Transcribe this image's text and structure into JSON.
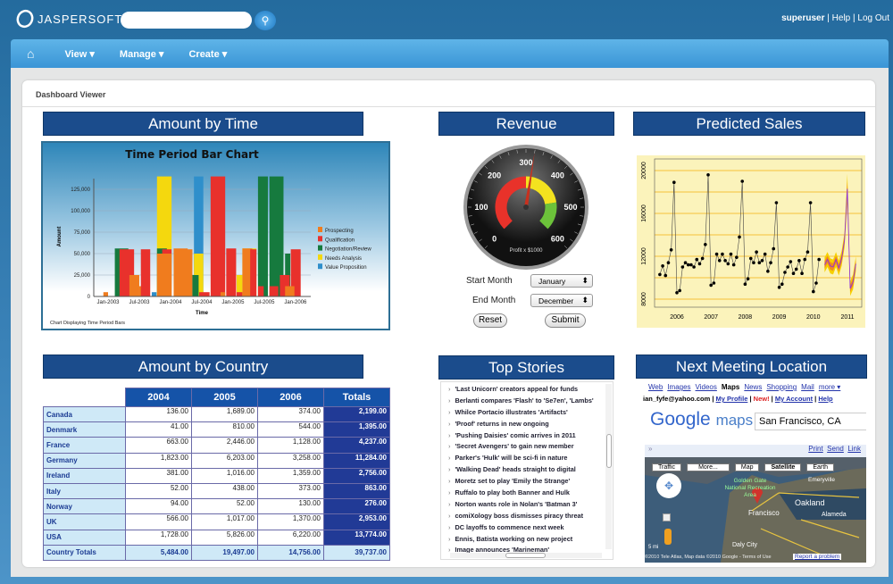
{
  "header": {
    "logo": "JASPERSOFT",
    "search_placeholder": "",
    "user": "superuser",
    "help": "Help",
    "logout": "Log Out",
    "sep": "|"
  },
  "nav": {
    "home": "home",
    "view": "View ▾",
    "manage": "Manage ▾",
    "create": "Create ▾"
  },
  "page": {
    "title": "Dashboard Viewer"
  },
  "panels": {
    "amount_by_time": "Amount by Time",
    "revenue": "Revenue",
    "predicted_sales": "Predicted Sales",
    "amount_by_country": "Amount by Country",
    "top_stories": "Top Stories",
    "next_meeting": "Next Meeting Location"
  },
  "revenue": {
    "gauge_value": 320,
    "gauge_min": 0,
    "gauge_max": 600,
    "ticks": [
      "0",
      "100",
      "200",
      "300",
      "400",
      "500",
      "600"
    ],
    "unit_label": "Profit x $1000",
    "start_label": "Start Month",
    "start_value": "January",
    "end_label": "End Month",
    "end_value": "December",
    "reset": "Reset",
    "submit": "Submit",
    "colors": {
      "red": "#e8322a",
      "yellow": "#f3e21f",
      "green": "#6cc23a"
    }
  },
  "chart_data": [
    {
      "type": "bar",
      "title": "Time Period Bar Chart",
      "xlabel": "Time",
      "ylabel": "Amount",
      "footer": "Chart Displaying Time Period Bars",
      "ylim": [
        0,
        140000
      ],
      "yticks": [
        "0",
        "25,000",
        "50,000",
        "75,000",
        "100,000",
        "125,000"
      ],
      "xticks": [
        "Jan-2003",
        "Jul-2003",
        "Jan-2004",
        "Jul-2004",
        "Jan-2005",
        "Jul-2005",
        "Jan-2006"
      ],
      "legend": [
        {
          "name": "Prospecting",
          "color": "#f07c1e"
        },
        {
          "name": "Qualification",
          "color": "#e8312c"
        },
        {
          "name": "Negotiation/Review",
          "color": "#167a3e"
        },
        {
          "name": "Needs Analysis",
          "color": "#f4d80e"
        },
        {
          "name": "Value Proposition",
          "color": "#2f8fcb"
        }
      ],
      "bars": [
        {
          "s": 0,
          "m0": -0.9,
          "m1": 0,
          "v": 5000
        },
        {
          "s": 2,
          "m0": 1.3,
          "m1": 3.9,
          "v": 56000
        },
        {
          "s": 1,
          "m0": 2.2,
          "m1": 5,
          "v": 55000
        },
        {
          "s": 0,
          "m0": 4.1,
          "m1": 6,
          "v": 25000
        },
        {
          "s": 0,
          "m0": 6,
          "m1": 7,
          "v": 12000
        },
        {
          "s": 1,
          "m0": 6.3,
          "m1": 8.1,
          "v": 55000
        },
        {
          "s": 4,
          "m0": 8.4,
          "m1": 9.3,
          "v": 5000
        },
        {
          "s": 3,
          "m0": 9.4,
          "m1": 12.2,
          "v": 140000
        },
        {
          "s": 2,
          "m0": 9.4,
          "m1": 11.3,
          "v": 56000
        },
        {
          "s": 1,
          "m0": 10.4,
          "m1": 12.2,
          "v": 55000
        },
        {
          "s": 0,
          "m0": 9.4,
          "m1": 12.2,
          "v": 50000
        },
        {
          "s": 0,
          "m0": 12.6,
          "m1": 15.3,
          "v": 56000
        },
        {
          "s": 0,
          "m0": 13.5,
          "m1": 16.2,
          "v": 55000
        },
        {
          "s": 4,
          "m0": 16.5,
          "m1": 18.3,
          "v": 140000
        },
        {
          "s": 3,
          "m0": 16.5,
          "m1": 18.3,
          "v": 50000
        },
        {
          "s": 2,
          "m0": 16.2,
          "m1": 17.4,
          "v": 25000
        },
        {
          "s": 1,
          "m0": 17.5,
          "m1": 19.5,
          "v": 5000
        },
        {
          "s": 1,
          "m0": 19.7,
          "m1": 22.5,
          "v": 140000
        },
        {
          "s": 0,
          "m0": 21.6,
          "m1": 22.5,
          "v": 5000
        },
        {
          "s": 1,
          "m0": 22.7,
          "m1": 24.6,
          "v": 56000
        },
        {
          "s": 3,
          "m0": 24.7,
          "m1": 25.8,
          "v": 25000
        },
        {
          "s": 1,
          "m0": 24.7,
          "m1": 25.8,
          "v": 5000
        },
        {
          "s": 3,
          "m0": 25.8,
          "m1": 28.5,
          "v": 56000
        },
        {
          "s": 0,
          "m0": 25.8,
          "m1": 27.7,
          "v": 56000
        },
        {
          "s": 1,
          "m0": 27.3,
          "m1": 28.5,
          "v": 55000
        },
        {
          "s": 2,
          "m0": 28.8,
          "m1": 30.7,
          "v": 140000
        },
        {
          "s": 1,
          "m0": 28.8,
          "m1": 29.9,
          "v": 12000
        },
        {
          "s": 2,
          "m0": 31,
          "m1": 33.7,
          "v": 140000
        },
        {
          "s": 1,
          "m0": 31,
          "m1": 32.7,
          "v": 12000
        },
        {
          "s": 2,
          "m0": 34,
          "m1": 35,
          "v": 50000
        },
        {
          "s": 1,
          "m0": 33,
          "m1": 34.9,
          "v": 25000
        },
        {
          "s": 1,
          "m0": 35.1,
          "m1": 37,
          "v": 55000
        },
        {
          "s": 0,
          "m0": 34,
          "m1": 35.8,
          "v": 12000
        }
      ]
    },
    {
      "type": "line",
      "title": "Predicted Sales",
      "xlim": [
        2005.4,
        2011.3
      ],
      "ylim": [
        8000,
        20000
      ],
      "xticks": [
        "2006",
        "2007",
        "2008",
        "2009",
        "2010",
        "2011"
      ],
      "yticks": [
        "8000",
        "12000",
        "16000",
        "20000"
      ],
      "actual_start": 2005.5,
      "actual": [
        10300,
        11100,
        10200,
        11400,
        12600,
        18900,
        8600,
        8800,
        11000,
        11400,
        11200,
        11200,
        11000,
        11700,
        11300,
        11800,
        13100,
        19600,
        9300,
        9500,
        12200,
        11600,
        12200,
        11600,
        11300,
        12200,
        11200,
        11900,
        13800,
        19000,
        9400,
        9900,
        11800,
        11400,
        12400,
        11400,
        11600,
        12200,
        10600,
        11400,
        12700,
        17000,
        9100,
        9400,
        10500,
        11000,
        11500,
        10400,
        10800,
        11600,
        10400,
        11700,
        12400,
        17000,
        8700,
        9500,
        11700
      ],
      "forecast_start": 2010.33,
      "forecast": [
        11200,
        11700,
        11100,
        11000,
        11700,
        10900,
        11800,
        13500,
        18300,
        9000,
        9600,
        11300
      ]
    }
  ],
  "country_table": {
    "columns": [
      "2004",
      "2005",
      "2006",
      "Totals"
    ],
    "rows": [
      [
        "Canada",
        "136.00",
        "1,689.00",
        "374.00",
        "2,199.00"
      ],
      [
        "Denmark",
        "41.00",
        "810.00",
        "544.00",
        "1,395.00"
      ],
      [
        "France",
        "663.00",
        "2,446.00",
        "1,128.00",
        "4,237.00"
      ],
      [
        "Germany",
        "1,823.00",
        "6,203.00",
        "3,258.00",
        "11,284.00"
      ],
      [
        "Ireland",
        "381.00",
        "1,016.00",
        "1,359.00",
        "2,756.00"
      ],
      [
        "Italy",
        "52.00",
        "438.00",
        "373.00",
        "863.00"
      ],
      [
        "Norway",
        "94.00",
        "52.00",
        "130.00",
        "276.00"
      ],
      [
        "UK",
        "566.00",
        "1,017.00",
        "1,370.00",
        "2,953.00"
      ],
      [
        "USA",
        "1,728.00",
        "5,826.00",
        "6,220.00",
        "13,774.00"
      ]
    ],
    "totals": [
      "Country Totals",
      "5,484.00",
      "19,497.00",
      "14,756.00",
      "39,737.00"
    ]
  },
  "stories": [
    "'Last Unicorn' creators appeal for funds",
    "Berlanti compares 'Flash' to 'Se7en', 'Lambs'",
    "Whilce Portacio illustrates 'Artifacts'",
    "'Proof' returns in new ongoing",
    "'Pushing Daisies' comic arrives in 2011",
    "'Secret Avengers' to gain new member",
    "Parker's 'Hulk' will be sci-fi in nature",
    "'Walking Dead' heads straight to digital",
    "Moretz set to play 'Emily the Strange'",
    "Ruffalo to play both Banner and Hulk",
    "Norton wants role in Nolan's 'Batman 3'",
    "comiXology boss dismisses piracy threat",
    "DC layoffs to commence next week",
    "Ennis, Batista working on new project",
    "Image announces 'Marineman'"
  ],
  "map": {
    "links": [
      "Web",
      "Images",
      "Videos",
      "Maps",
      "News",
      "Shopping",
      "Mail",
      "more ▾"
    ],
    "account": "ian_fyfe@yahoo.com",
    "my_profile": "My Profile",
    "new": "New!",
    "my_account": "My Account",
    "help": "Help",
    "logo_google": "Google",
    "logo_maps": "maps",
    "query": "San Francisco, CA",
    "print": "Print",
    "send": "Send",
    "link": "Link",
    "buttons": [
      "Traffic",
      "More...",
      "Map",
      "Satellite",
      "Earth"
    ],
    "labels": [
      "Golden Gate National Recreation Area",
      "Francisco",
      "Oakland",
      "Emeryville",
      "Alameda",
      "Daly City"
    ],
    "scale": "5 mi",
    "copyright": "©2010 Tele Atlas, Map data ©2010 Google - Terms of Use",
    "report": "Report a problem",
    "marker": "A"
  }
}
